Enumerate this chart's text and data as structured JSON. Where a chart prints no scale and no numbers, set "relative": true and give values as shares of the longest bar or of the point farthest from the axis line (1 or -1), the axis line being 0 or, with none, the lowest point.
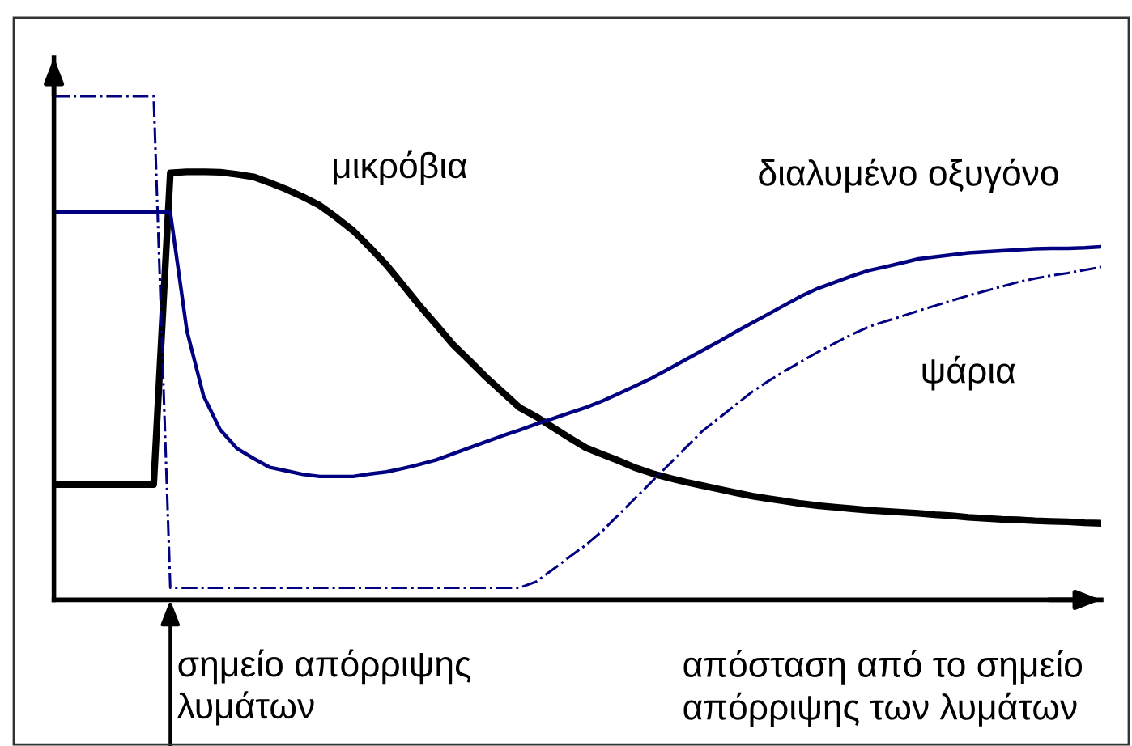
{
  "chart_data": {
    "type": "line",
    "relative": true,
    "xlabel": "απόσταση από το σημείο\nαπόρριψης των λυμάτων",
    "categories": [
      null,
      null,
      null,
      null,
      null,
      null,
      null,
      null,
      null,
      null,
      null,
      null,
      null,
      null,
      null,
      null,
      null,
      null,
      null,
      null,
      null,
      null,
      null,
      null,
      null,
      null,
      null,
      null,
      null,
      null,
      null,
      null,
      null,
      null,
      null,
      null,
      null,
      null,
      null,
      null,
      null,
      null,
      null,
      null,
      null,
      null,
      null,
      null,
      null,
      null,
      null,
      null,
      null,
      null,
      null,
      null,
      null,
      null,
      null,
      null,
      null,
      null,
      null,
      null
    ],
    "series": [
      {
        "name": "μικρόβια",
        "color": "#000000",
        "line_style": "solid",
        "values": [
          0.229,
          0.229,
          0.229,
          0.229,
          0.229,
          0.229,
          0.229,
          0.848,
          0.85,
          0.85,
          0.849,
          0.845,
          0.84,
          0.828,
          0.815,
          0.8,
          0.783,
          0.759,
          0.733,
          0.7,
          0.665,
          0.625,
          0.584,
          0.546,
          0.507,
          0.475,
          0.442,
          0.412,
          0.382,
          0.364,
          0.343,
          0.322,
          0.302,
          0.289,
          0.276,
          0.262,
          0.251,
          0.242,
          0.234,
          0.227,
          0.22,
          0.213,
          0.206,
          0.201,
          0.196,
          0.191,
          0.187,
          0.184,
          0.181,
          0.178,
          0.176,
          0.174,
          0.172,
          0.169,
          0.167,
          0.164,
          0.162,
          0.16,
          0.159,
          0.157,
          0.156,
          0.155,
          0.153,
          0.152
        ]
      },
      {
        "name": "διαλυμένο οξυγόνο",
        "color": "#000080",
        "line_style": "solid",
        "values": [
          0.77,
          0.77,
          0.77,
          0.77,
          0.77,
          0.77,
          0.77,
          0.77,
          0.534,
          0.405,
          0.338,
          0.301,
          0.281,
          0.263,
          0.256,
          0.249,
          0.245,
          0.245,
          0.245,
          0.25,
          0.254,
          0.261,
          0.269,
          0.278,
          0.29,
          0.302,
          0.314,
          0.326,
          0.337,
          0.349,
          0.36,
          0.371,
          0.382,
          0.395,
          0.41,
          0.425,
          0.441,
          0.459,
          0.477,
          0.495,
          0.513,
          0.532,
          0.55,
          0.568,
          0.586,
          0.604,
          0.619,
          0.631,
          0.643,
          0.654,
          0.661,
          0.669,
          0.677,
          0.681,
          0.685,
          0.689,
          0.691,
          0.693,
          0.695,
          0.697,
          0.698,
          0.698,
          0.699,
          0.701
        ]
      },
      {
        "name": "ψάρια",
        "color": "#000080",
        "line_style": "dashdot",
        "values": [
          1.0,
          1.0,
          1.0,
          1.0,
          1.0,
          1.0,
          1.0,
          0.024,
          0.024,
          0.024,
          0.024,
          0.024,
          0.024,
          0.024,
          0.024,
          0.024,
          0.024,
          0.024,
          0.024,
          0.024,
          0.024,
          0.024,
          0.024,
          0.024,
          0.024,
          0.024,
          0.024,
          0.024,
          0.024,
          0.036,
          0.06,
          0.085,
          0.109,
          0.137,
          0.17,
          0.203,
          0.236,
          0.269,
          0.302,
          0.335,
          0.361,
          0.387,
          0.413,
          0.435,
          0.455,
          0.474,
          0.493,
          0.51,
          0.527,
          0.542,
          0.553,
          0.563,
          0.574,
          0.584,
          0.594,
          0.604,
          0.613,
          0.622,
          0.631,
          0.638,
          0.644,
          0.649,
          0.655,
          0.661
        ]
      }
    ],
    "annotations": [
      "σημείο απόρριψης\nλυμάτων"
    ]
  }
}
